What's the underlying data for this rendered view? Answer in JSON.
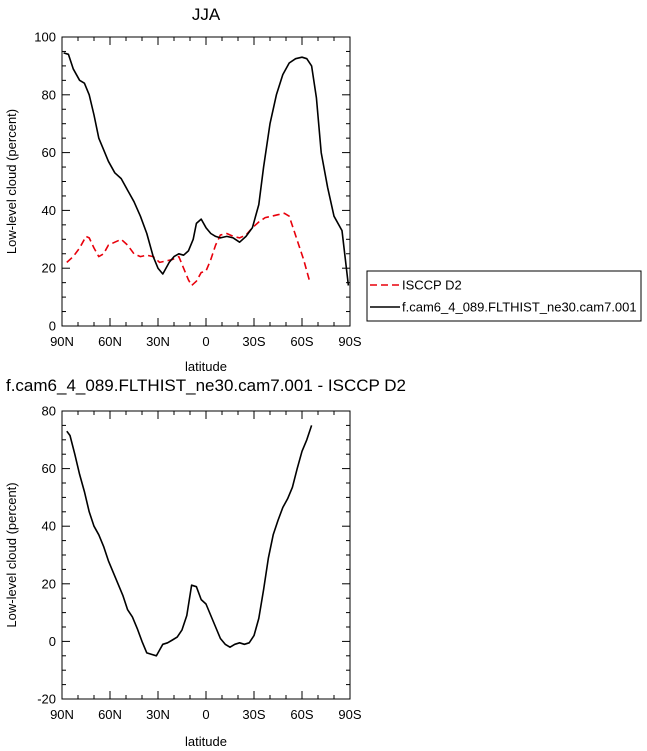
{
  "chart_data": [
    {
      "type": "line",
      "title": "JJA",
      "xlabel": "latitude",
      "ylabel": "Low-level cloud (percent)",
      "xlim": [
        90,
        -90
      ],
      "ylim": [
        0,
        100
      ],
      "x_ticks": [
        90,
        60,
        30,
        0,
        -30,
        -60,
        -90
      ],
      "x_tick_labels": [
        "90N",
        "60N",
        "30N",
        "0",
        "30S",
        "60S",
        "90S"
      ],
      "y_ticks": [
        0,
        20,
        40,
        60,
        80,
        100
      ],
      "y_tick_labels": [
        "0",
        "20",
        "40",
        "60",
        "80",
        "100"
      ],
      "legend_position": "right",
      "series": [
        {
          "name": "ISCCP D2",
          "color": "#e8000b",
          "dash": true,
          "x": [
            87,
            83,
            79,
            75,
            73,
            70,
            67,
            64,
            61,
            57,
            53,
            49,
            45,
            41,
            37,
            33,
            29,
            25,
            21,
            17,
            14,
            11,
            9,
            6,
            3,
            0,
            -3,
            -6,
            -9,
            -13,
            -17,
            -21,
            -25,
            -29,
            -33,
            -37,
            -41,
            -45,
            -49,
            -52,
            -55,
            -58,
            -61,
            -65
          ],
          "y": [
            22,
            24,
            27,
            31,
            30.5,
            27,
            24,
            25,
            28,
            29,
            30,
            28,
            25,
            24,
            24.5,
            24,
            22,
            22.5,
            23,
            24,
            20,
            16,
            14,
            15.5,
            18.5,
            19,
            23,
            28,
            31.5,
            32,
            31,
            30.5,
            31.5,
            34,
            36,
            37.5,
            38,
            38.5,
            39,
            38,
            33,
            28,
            23,
            15
          ]
        },
        {
          "name": "f.cam6_4_089.FLTHIST_ne30.cam7.001",
          "color": "#000000",
          "dash": false,
          "x": [
            89,
            86,
            83,
            79,
            76,
            73,
            70,
            67,
            64,
            61,
            57,
            53,
            49,
            45,
            41,
            37,
            33,
            30,
            27,
            23,
            20,
            17,
            14,
            11,
            8,
            6,
            3,
            0,
            -3,
            -6,
            -9,
            -13,
            -17,
            -21,
            -25,
            -29,
            -33,
            -36,
            -40,
            -44,
            -48,
            -52,
            -56,
            -60,
            -63,
            -66,
            -69,
            -72,
            -76,
            -80,
            -85,
            -89
          ],
          "y": [
            94.5,
            94,
            89,
            85,
            84,
            80,
            73,
            65,
            61,
            57,
            53,
            51,
            47,
            43,
            38,
            32,
            24,
            20,
            18,
            22,
            24,
            25,
            24.5,
            26,
            30,
            35.5,
            37,
            34,
            32,
            31,
            30.5,
            31,
            30.5,
            29,
            31,
            34,
            42,
            55,
            70,
            80,
            87,
            91,
            92.5,
            93,
            92.5,
            90,
            79,
            60,
            48,
            38,
            33,
            14
          ]
        }
      ]
    },
    {
      "type": "line",
      "title": "f.cam6_4_089.FLTHIST_ne30.cam7.001 - ISCCP D2",
      "xlabel": "latitude",
      "ylabel": "Low-level cloud (percent)",
      "xlim": [
        90,
        -90
      ],
      "ylim": [
        -20,
        80
      ],
      "x_ticks": [
        90,
        60,
        30,
        0,
        -30,
        -60,
        -90
      ],
      "x_tick_labels": [
        "90N",
        "60N",
        "30N",
        "0",
        "30S",
        "60S",
        "90S"
      ],
      "y_ticks": [
        -20,
        0,
        20,
        40,
        60,
        80
      ],
      "y_tick_labels": [
        "-20",
        "0",
        "20",
        "40",
        "60",
        "80"
      ],
      "series": [
        {
          "color": "#000000",
          "dash": false,
          "x": [
            87,
            85,
            82,
            79,
            76,
            73,
            70,
            67,
            64,
            61,
            58,
            55,
            52,
            49,
            46,
            43,
            40,
            37,
            34,
            31,
            29,
            27,
            24,
            21,
            18,
            15,
            12,
            9,
            6,
            3,
            0,
            -3,
            -6,
            -9,
            -12,
            -15,
            -18,
            -21,
            -24,
            -27,
            -30,
            -33,
            -36,
            -39,
            -42,
            -45,
            -48,
            -51,
            -54,
            -57,
            -60,
            -63,
            -66
          ],
          "y": [
            73,
            71.5,
            65,
            58,
            52,
            45,
            40,
            37,
            33,
            28,
            24,
            20,
            16,
            11,
            8.5,
            4.5,
            0,
            -4,
            -4.5,
            -5,
            -3,
            -1,
            -0.5,
            0.5,
            1.5,
            4,
            9,
            19.5,
            19,
            14.5,
            13,
            9,
            5,
            1,
            -1,
            -2,
            -1,
            -0.5,
            -1,
            -0.5,
            2,
            8,
            18,
            29,
            37,
            42,
            46.5,
            49.5,
            53.5,
            60,
            66,
            70,
            75
          ]
        }
      ]
    }
  ],
  "legend_entries": [
    "ISCCP D2",
    "f.cam6_4_089.FLTHIST_ne30.cam7.001"
  ]
}
